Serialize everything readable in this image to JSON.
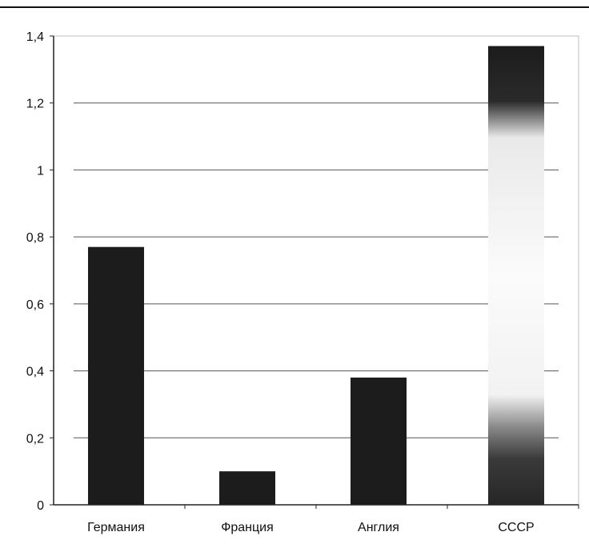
{
  "chart_data": {
    "type": "bar",
    "categories": [
      "Германия",
      "Франция",
      "Англия",
      "СССР"
    ],
    "values": [
      0.77,
      0.1,
      0.38,
      1.37
    ],
    "ylim": [
      0,
      1.4
    ],
    "yticks": [
      "0",
      "0,2",
      "0,4",
      "0,6",
      "0,8",
      "1",
      "1,2",
      "1,4"
    ],
    "ytick_values": [
      0,
      0.2,
      0.4,
      0.6,
      0.8,
      1.0,
      1.2,
      1.4
    ],
    "grid": true,
    "legend": "none",
    "colors": {
      "bar": "#1c1c1c",
      "bar_highlight_light": "#f6f6f6",
      "gridline": "#555555",
      "axis": "#222222",
      "frame": "#bdbdbd",
      "top_rule": "#111111"
    }
  }
}
